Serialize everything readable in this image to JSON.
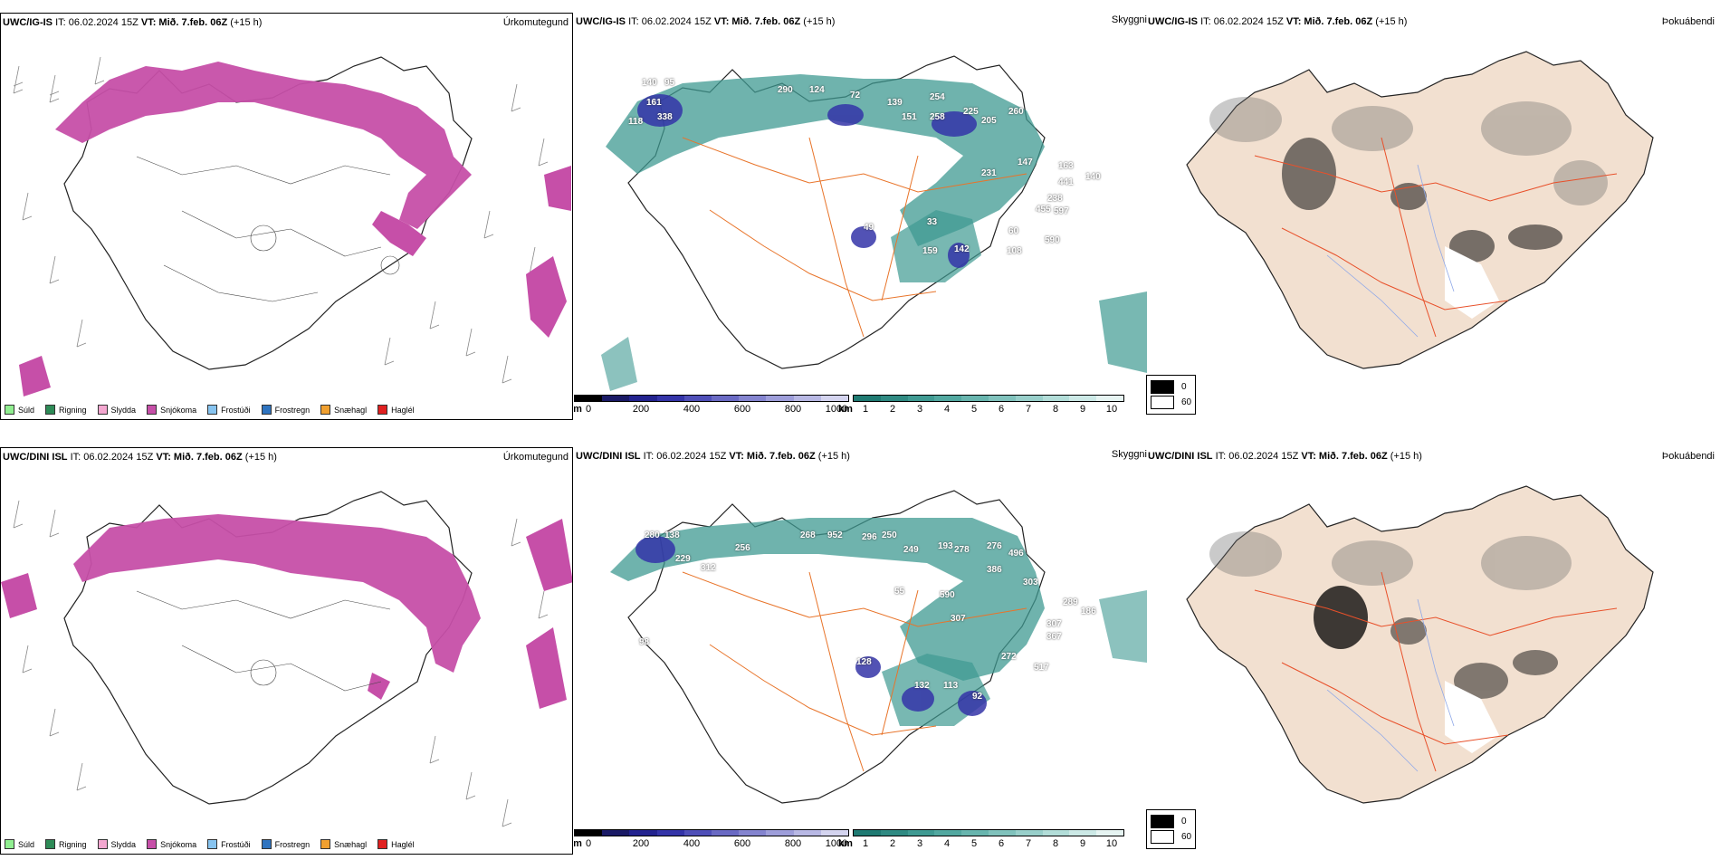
{
  "panels": [
    {
      "row": 0,
      "precip": {
        "model": "UWC/IG-IS",
        "it_text": "IT: 06.02.2024 15Z",
        "vt_text": "VT: Mið. 7.feb. 06Z",
        "lead_text": "(+15 h)",
        "title": "Úrkomutegund"
      },
      "cloud": {
        "model": "UWC/IG-IS",
        "it_text": "IT: 06.02.2024 15Z",
        "vt_text": "VT: Mið. 7.feb. 06Z",
        "lead_text": "(+15 h)",
        "title": "Skyggni",
        "labels": [
          "140",
          "95",
          "161",
          "118",
          "338",
          "290",
          "124",
          "72",
          "254",
          "139",
          "151",
          "258",
          "225",
          "205",
          "260",
          "231",
          "147",
          "163",
          "441",
          "140",
          "238",
          "455",
          "597",
          "60",
          "590",
          "108",
          "142",
          "159",
          "33",
          "49"
        ]
      },
      "fog": {
        "model": "UWC/IG-IS",
        "it_text": "IT: 06.02.2024 15Z",
        "vt_text": "VT: Mið. 7.feb. 06Z",
        "lead_text": "(+15 h)",
        "title": "Þokuábendi"
      }
    },
    {
      "row": 1,
      "precip": {
        "model": "UWC/DINI ISL",
        "it_text": "IT: 06.02.2024 15Z",
        "vt_text": "VT: Mið. 7.feb. 06Z",
        "lead_text": "(+15 h)",
        "title": "Úrkomutegund"
      },
      "cloud": {
        "model": "UWC/DINI ISL",
        "it_text": "IT: 06.02.2024 15Z",
        "vt_text": "VT: Mið. 7.feb. 06Z",
        "lead_text": "(+15 h)",
        "title": "Skyggni",
        "labels": [
          "280",
          "138",
          "229",
          "312",
          "256",
          "268",
          "952",
          "296",
          "250",
          "249",
          "193",
          "278",
          "276",
          "496",
          "386",
          "303",
          "590",
          "307",
          "55",
          "289",
          "186",
          "307",
          "367",
          "272",
          "517",
          "128",
          "132",
          "113",
          "92",
          "98"
        ]
      },
      "fog": {
        "model": "UWC/DINI ISL",
        "it_text": "IT: 06.02.2024 15Z",
        "vt_text": "VT: Mið. 7.feb. 06Z",
        "lead_text": "(+15 h)",
        "title": "Þokuábendi"
      }
    }
  ],
  "precip_legend": [
    {
      "label": "Súld",
      "color": "#90ee90"
    },
    {
      "label": "Rigning",
      "color": "#2e8b57"
    },
    {
      "label": "Slydda",
      "color": "#f4a7d0"
    },
    {
      "label": "Snjókoma",
      "color": "#c64fa8"
    },
    {
      "label": "Frostúði",
      "color": "#87c4f0"
    },
    {
      "label": "Frostregn",
      "color": "#2f74c0"
    },
    {
      "label": "Snæhagl",
      "color": "#f0a030"
    },
    {
      "label": "Haglél",
      "color": "#e02020"
    }
  ],
  "cloud_base_scale": {
    "unit": "m",
    "ticks": [
      "0",
      "200",
      "400",
      "600",
      "800",
      "1000"
    ],
    "colors": [
      "#000000",
      "#1a1a66",
      "#23238f",
      "#3434a8",
      "#4f4fb8",
      "#6a6ac4",
      "#8484cf",
      "#9e9eda",
      "#b8b8e4",
      "#d4d4ef"
    ]
  },
  "visibility_scale": {
    "unit": "km",
    "ticks": [
      "1",
      "2",
      "3",
      "4",
      "5",
      "6",
      "7",
      "8",
      "9",
      "10"
    ],
    "colors": [
      "#1f7a72",
      "#2f8a82",
      "#3f9a92",
      "#52a8a0",
      "#68b5ae",
      "#80c2bc",
      "#98cfca",
      "#b2ddd8",
      "#cce9e6",
      "#e6f4f2"
    ]
  },
  "fog_legend": [
    {
      "value": "0",
      "color": "#000000"
    },
    {
      "value": "60",
      "color": "#ffffff"
    }
  ],
  "colors": {
    "snow": "#c64fa8",
    "land_fog": "#f2e0d0",
    "roads": "#e8742a",
    "rivers": "#8fa8e8",
    "vis_green": "#3f9a92",
    "cloud_blue": "#3434a8"
  }
}
